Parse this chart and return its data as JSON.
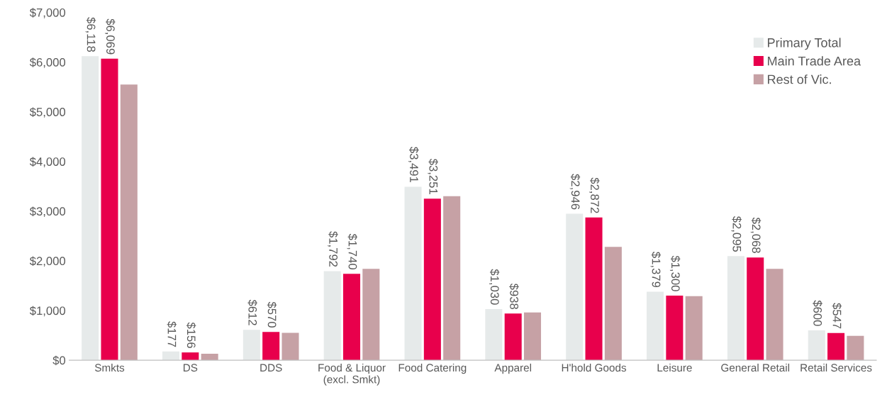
{
  "chart_data": {
    "type": "bar",
    "categories": [
      "Smkts",
      "DS",
      "DDS",
      "Food & Liquor\n(excl. Smkt)",
      "Food Catering",
      "Apparel",
      "H'hold Goods",
      "Leisure",
      "General Retail",
      "Retail Services"
    ],
    "series": [
      {
        "name": "Primary Total",
        "color": "#e6eaea",
        "values": [
          6118,
          177,
          612,
          1792,
          3491,
          1030,
          2946,
          1379,
          2095,
          600
        ],
        "value_labels": [
          "$6,118",
          "$177",
          "$612",
          "$1,792",
          "$3,491",
          "$1,030",
          "$2,946",
          "$1,379",
          "$2,095",
          "$600"
        ]
      },
      {
        "name": "Main Trade Area",
        "color": "#e8004c",
        "values": [
          6069,
          156,
          570,
          1740,
          3251,
          938,
          2872,
          1300,
          2068,
          547
        ],
        "value_labels": [
          "$6,069",
          "$156",
          "$570",
          "$1,740",
          "$3,251",
          "$938",
          "$2,872",
          "$1,300",
          "$2,068",
          "$547"
        ]
      },
      {
        "name": "Rest of Vic.",
        "color": "#c6a1a5",
        "values": [
          5550,
          130,
          550,
          1840,
          3300,
          960,
          2280,
          1290,
          1840,
          490
        ]
      }
    ],
    "ylim": [
      0,
      7000
    ],
    "yticks": [
      {
        "value": 0,
        "label": "$0"
      },
      {
        "value": 1000,
        "label": "$1,000"
      },
      {
        "value": 2000,
        "label": "$2,000"
      },
      {
        "value": 3000,
        "label": "$3,000"
      },
      {
        "value": 4000,
        "label": "$4,000"
      },
      {
        "value": 5000,
        "label": "$5,000"
      },
      {
        "value": 6000,
        "label": "$6,000"
      },
      {
        "value": 7000,
        "label": "$7,000"
      }
    ],
    "grid": false,
    "legend": "top right"
  }
}
